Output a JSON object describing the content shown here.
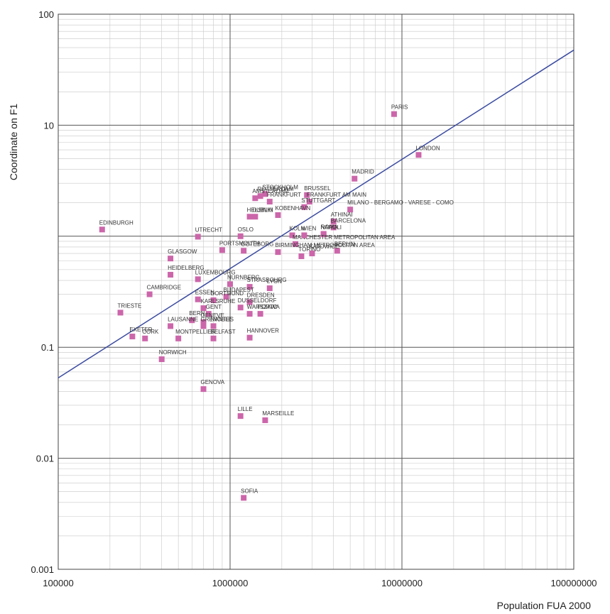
{
  "chart_data": {
    "type": "scatter",
    "title": "",
    "xlabel": "Population FUA 2000",
    "ylabel": "Coordinate on F1",
    "x_scale": "log",
    "y_scale": "log",
    "xlim": [
      100000,
      100000000
    ],
    "ylim": [
      0.001,
      100
    ],
    "x_ticks": [
      "100000",
      "1000000",
      "10000000",
      "100000000"
    ],
    "y_ticks": [
      "0.001",
      "0.01",
      "0.1",
      "10",
      "100"
    ],
    "grid": true,
    "marker_color": "#cc66aa",
    "line_color": "#3b4ba0",
    "trend_line": [
      {
        "x": 100000,
        "y": 0.053
      },
      {
        "x": 100000000,
        "y": 47.5
      }
    ],
    "points": [
      {
        "label": "PARIS",
        "x": 9000000,
        "y": 12.6
      },
      {
        "label": "LONDON",
        "x": 12500000,
        "y": 5.4
      },
      {
        "label": "MADRID",
        "x": 5300000,
        "y": 3.3
      },
      {
        "label": "MILANO - BERGAMO - VARESE - COMO",
        "x": 5000000,
        "y": 1.74
      },
      {
        "label": "ATHINAI",
        "x": 4000000,
        "y": 1.36
      },
      {
        "label": "BARCELONA",
        "x": 4000000,
        "y": 1.2
      },
      {
        "label": "ROMA",
        "x": 3500000,
        "y": 1.05
      },
      {
        "label": "BERLIN",
        "x": 4200000,
        "y": 0.74
      },
      {
        "label": "KOLN",
        "x": 2300000,
        "y": 1.02
      },
      {
        "label": "BRUSSEL",
        "x": 2800000,
        "y": 2.35
      },
      {
        "label": "FRANKFURT AM MAIN",
        "x": 2900000,
        "y": 2.05
      },
      {
        "label": "STUTTGART",
        "x": 2700000,
        "y": 1.83
      },
      {
        "label": "NAPOLI",
        "x": 3500000,
        "y": 1.04
      },
      {
        "label": "TORINO",
        "x": 2600000,
        "y": 0.66
      },
      {
        "label": "MANCHESTER METROPOLITAN AREA",
        "x": 2400000,
        "y": 0.85
      },
      {
        "label": "KATOWICE",
        "x": 3000000,
        "y": 0.7
      },
      {
        "label": "WIEN",
        "x": 2700000,
        "y": 1.02
      },
      {
        "label": "STOCKHOLM",
        "x": 1600000,
        "y": 2.4
      },
      {
        "label": "AMSTERDAM",
        "x": 1400000,
        "y": 2.2
      },
      {
        "label": "ROTTERDAM",
        "x": 1500000,
        "y": 2.3
      },
      {
        "label": "FRANKFURT",
        "x": 1700000,
        "y": 2.05
      },
      {
        "label": "HELSINKI",
        "x": 1300000,
        "y": 1.5
      },
      {
        "label": "DUBLIN",
        "x": 1400000,
        "y": 1.5
      },
      {
        "label": "KOBENHAVN",
        "x": 1900000,
        "y": 1.55
      },
      {
        "label": "OSLO",
        "x": 1150000,
        "y": 1.0
      },
      {
        "label": "UTRECHT",
        "x": 650000,
        "y": 0.99
      },
      {
        "label": "EDINBURGH",
        "x": 180000,
        "y": 1.15
      },
      {
        "label": "PORTSMOUTH",
        "x": 900000,
        "y": 0.75
      },
      {
        "label": "GOTEBORG",
        "x": 1200000,
        "y": 0.74
      },
      {
        "label": "BIRMINGHAM METROPOLITAN AREA",
        "x": 1900000,
        "y": 0.72
      },
      {
        "label": "GLASGOW",
        "x": 450000,
        "y": 0.63
      },
      {
        "label": "HEIDELBERG",
        "x": 450000,
        "y": 0.45
      },
      {
        "label": "LUXEMBOURG",
        "x": 650000,
        "y": 0.41
      },
      {
        "label": "NURNBERG",
        "x": 1000000,
        "y": 0.37
      },
      {
        "label": "STRASBOURG",
        "x": 1300000,
        "y": 0.35
      },
      {
        "label": "LYON",
        "x": 1700000,
        "y": 0.34
      },
      {
        "label": "CAMBRIDGE",
        "x": 340000,
        "y": 0.3
      },
      {
        "label": "BUDAPEST",
        "x": 950000,
        "y": 0.285
      },
      {
        "label": "ESSEN",
        "x": 650000,
        "y": 0.27
      },
      {
        "label": "DORTMUND",
        "x": 800000,
        "y": 0.265
      },
      {
        "label": "DRESDEN",
        "x": 1300000,
        "y": 0.255
      },
      {
        "label": "DUSSELDORF",
        "x": 1150000,
        "y": 0.228
      },
      {
        "label": "KARLSRUHE",
        "x": 700000,
        "y": 0.225
      },
      {
        "label": "TRIESTE",
        "x": 230000,
        "y": 0.205
      },
      {
        "label": "GENT",
        "x": 750000,
        "y": 0.2
      },
      {
        "label": "WARSZAWA",
        "x": 1300000,
        "y": 0.2
      },
      {
        "label": "PORTO",
        "x": 1500000,
        "y": 0.2
      },
      {
        "label": "BERN",
        "x": 600000,
        "y": 0.175
      },
      {
        "label": "GENEVE",
        "x": 700000,
        "y": 0.168
      },
      {
        "label": "LAUSANNE",
        "x": 450000,
        "y": 0.155
      },
      {
        "label": "GRENOBLE",
        "x": 700000,
        "y": 0.155
      },
      {
        "label": "NANTES",
        "x": 800000,
        "y": 0.155
      },
      {
        "label": "EXETER",
        "x": 270000,
        "y": 0.125
      },
      {
        "label": "CORK",
        "x": 320000,
        "y": 0.12
      },
      {
        "label": "MONTPELLIER",
        "x": 500000,
        "y": 0.12
      },
      {
        "label": "BELFAST",
        "x": 800000,
        "y": 0.12
      },
      {
        "label": "HANNOVER",
        "x": 1300000,
        "y": 0.122
      },
      {
        "label": "NORWICH",
        "x": 400000,
        "y": 0.078
      },
      {
        "label": "GENOVA",
        "x": 700000,
        "y": 0.042
      },
      {
        "label": "LILLE",
        "x": 1150000,
        "y": 0.024
      },
      {
        "label": "MARSEILLE",
        "x": 1600000,
        "y": 0.022
      },
      {
        "label": "SOFIA",
        "x": 1200000,
        "y": 0.0044
      }
    ]
  }
}
